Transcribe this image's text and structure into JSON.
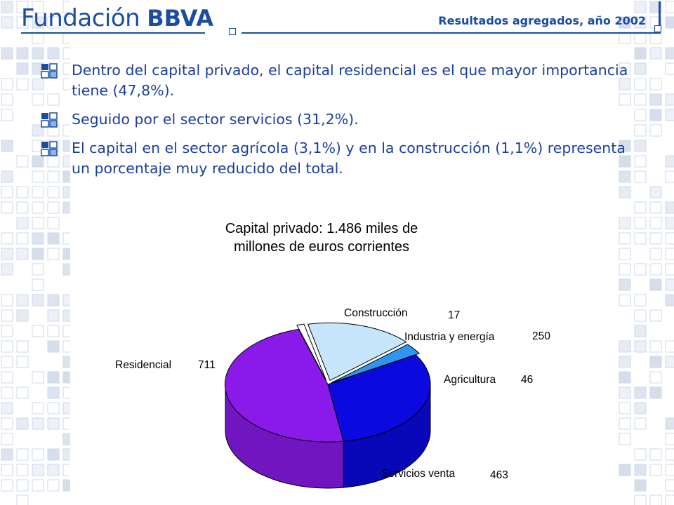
{
  "header": {
    "logo_word": "Fundación",
    "logo_bold": "BBVA",
    "title": "Resultados agregados, año 2002",
    "brand_color": "#1b4da0"
  },
  "bullets": [
    {
      "icon": "bullet-squares-icon",
      "text": "Dentro del capital privado, el capital residencial es el que mayor importancia tiene (47,8%)."
    },
    {
      "icon": "bullet-squares-icon",
      "text": "Seguido por el sector servicios (31,2%)."
    },
    {
      "icon": "bullet-squares-icon",
      "text": "El capital en el sector agrícola (3,1%) y en la construcción (1,1%) representa un porcentaje muy reducido del total."
    }
  ],
  "chart_data": {
    "type": "pie",
    "title_lines": [
      "Capital privado: 1.486 miles de",
      "millones de euros corrientes"
    ],
    "slices": [
      {
        "label": "Construcción",
        "value": 17,
        "color": "#ffffff"
      },
      {
        "label": "Industria y energía",
        "value": 250,
        "color": "#c8e6fb"
      },
      {
        "label": "Agricultura",
        "value": 46,
        "color": "#2e96f0"
      },
      {
        "label": "Servicios venta",
        "value": 463,
        "color": "#0a0ae0"
      },
      {
        "label": "Residencial",
        "value": 711,
        "color": "#8a1aea"
      }
    ],
    "legend": "none",
    "style": "3d-exploded"
  }
}
